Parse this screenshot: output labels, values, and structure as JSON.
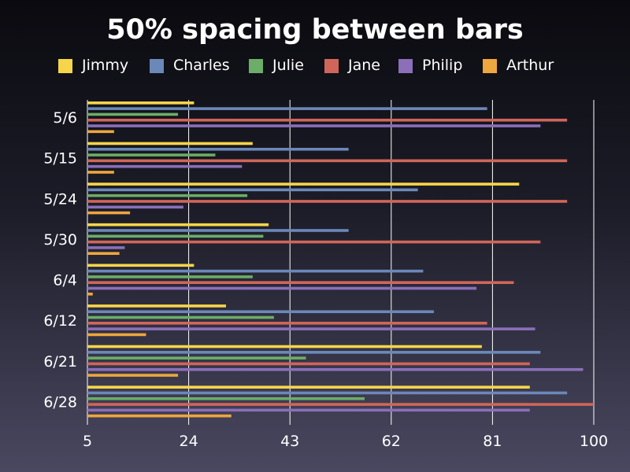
{
  "chart_data": {
    "type": "bar",
    "orientation": "horizontal",
    "title": "50% spacing between bars",
    "xlabel": "",
    "ylabel": "",
    "xlim": [
      5,
      100
    ],
    "x_ticks": [
      "5",
      "24",
      "43",
      "62",
      "81",
      "100"
    ],
    "grid": "vertical",
    "legend_position": "top",
    "categories": [
      "5/6",
      "5/15",
      "5/24",
      "5/30",
      "6/4",
      "6/12",
      "6/21",
      "6/28"
    ],
    "series": [
      {
        "name": "Jimmy",
        "color": "#f7d54a",
        "values": [
          25,
          36,
          86,
          39,
          25,
          31,
          79,
          88
        ]
      },
      {
        "name": "Charles",
        "color": "#6b88b8",
        "values": [
          80,
          54,
          67,
          54,
          68,
          70,
          90,
          95
        ]
      },
      {
        "name": "Julie",
        "color": "#6cad68",
        "values": [
          22,
          29,
          35,
          38,
          36,
          40,
          46,
          57
        ]
      },
      {
        "name": "Jane",
        "color": "#d0665a",
        "values": [
          95,
          95,
          95,
          90,
          85,
          80,
          88,
          100
        ]
      },
      {
        "name": "Philip",
        "color": "#8b6fb8",
        "values": [
          90,
          34,
          23,
          12,
          78,
          89,
          98,
          88
        ]
      },
      {
        "name": "Arthur",
        "color": "#eea63e",
        "values": [
          10,
          10,
          13,
          11,
          6,
          16,
          22,
          32
        ]
      }
    ]
  }
}
